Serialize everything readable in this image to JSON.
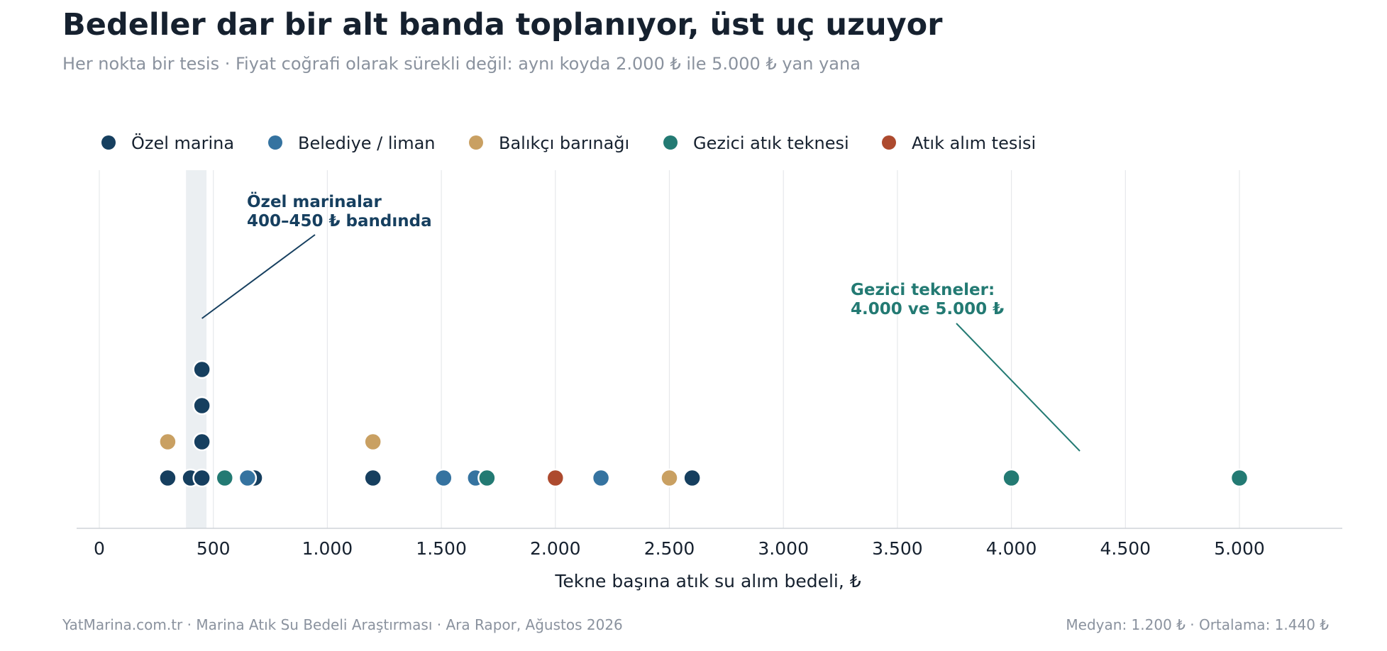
{
  "chart_data": {
    "type": "scatter",
    "title": "Bedeller dar bir alt banda toplanıyor, üst uç uzuyor",
    "subtitle": "Her nokta bir tesis · Fiyat coğrafi olarak sürekli değil: aynı koyda 2.000 ₺ ile 5.000 ₺ yan yana",
    "xlabel": "Tekne başına atık su alım bedeli, ₺",
    "xlim": [
      -100,
      5450
    ],
    "xticks": [
      0,
      500,
      1000,
      1500,
      2000,
      2500,
      3000,
      3500,
      4000,
      4500,
      5000
    ],
    "xtick_labels": [
      "0",
      "500",
      "1.000",
      "1.500",
      "2.000",
      "2.500",
      "3.000",
      "3.500",
      "4.000",
      "4.500",
      "5.000"
    ],
    "grid": "vertical",
    "legend_position": "top-left",
    "highlight_band": [
      380,
      470
    ],
    "series": [
      {
        "name": "Özel marina",
        "color": "#163f5f",
        "points": [
          300,
          400,
          450,
          450,
          450,
          450,
          680,
          1200,
          2600
        ]
      },
      {
        "name": "Belediye / liman",
        "color": "#3573a0",
        "points": [
          650,
          1510,
          1650,
          2200
        ]
      },
      {
        "name": "Balıkçı barınağı",
        "color": "#c9a062",
        "points": [
          300,
          1200,
          2500
        ]
      },
      {
        "name": "Gezici atık teknesi",
        "color": "#237a73",
        "points": [
          550,
          1700,
          4000,
          5000
        ]
      },
      {
        "name": "Atık alım tesisi",
        "color": "#ad4a2e",
        "points": [
          2000
        ]
      }
    ],
    "annotations": [
      {
        "lines": [
          "Özel marinalar",
          "400–450 ₺ bandında"
        ],
        "color": "#163f5f",
        "target_x": 450
      },
      {
        "lines": [
          "Gezici tekneler:",
          "4.000 ve 5.000 ₺"
        ],
        "color": "#237a73",
        "target_x": 4300
      }
    ]
  },
  "footer": {
    "source": "YatMarina.com.tr  ·  Marina Atık Su Bedeli Araştırması  ·  Ara Rapor, Ağustos 2026",
    "stats": "Medyan: 1.200 ₺  ·  Ortalama: 1.440 ₺"
  }
}
